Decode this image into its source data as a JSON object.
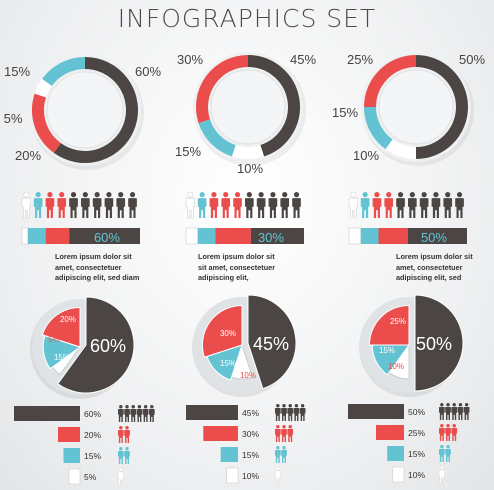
{
  "title": "INFOGRAPHICS SET",
  "colors": {
    "dark": "#4b4643",
    "red": "#ea4d4b",
    "cyan": "#63c3d3",
    "white": "#ffffff"
  },
  "chart_data": [
    {
      "type": "ring",
      "values": [
        60,
        20,
        5,
        15
      ],
      "labels": [
        "60%",
        "20%",
        "5%",
        "15%"
      ],
      "series_colors": [
        "dark",
        "red",
        "white",
        "cyan"
      ]
    },
    {
      "type": "ring",
      "values": [
        45,
        10,
        15,
        30
      ],
      "labels": [
        "45%",
        "10%",
        "15%",
        "30%"
      ],
      "series_colors": [
        "dark",
        "white",
        "cyan",
        "red"
      ]
    },
    {
      "type": "ring",
      "values": [
        50,
        10,
        15,
        25
      ],
      "labels": [
        "50%",
        "10%",
        "15%",
        "25%"
      ],
      "series_colors": [
        "dark",
        "white",
        "cyan",
        "red"
      ]
    },
    {
      "type": "people_bar",
      "value": 60,
      "label": "60%",
      "segments": [
        5,
        15,
        20,
        60
      ],
      "segment_colors": [
        "white",
        "cyan",
        "red",
        "dark"
      ],
      "people_colors": [
        "white",
        "cyan",
        "red",
        "red",
        "dark",
        "dark",
        "dark",
        "dark",
        "dark",
        "dark"
      ],
      "description": [
        "Lorem ipsum dolor sit",
        "amet, consectetuer",
        "adipiscing elit, sed diam"
      ]
    },
    {
      "type": "people_bar",
      "value": 30,
      "label": "30%",
      "segments": [
        10,
        15,
        30,
        45
      ],
      "segment_colors": [
        "white",
        "cyan",
        "red",
        "dark"
      ],
      "people_colors": [
        "white",
        "cyan",
        "red",
        "red",
        "red",
        "dark",
        "dark",
        "dark",
        "dark",
        "dark"
      ],
      "description": [
        "Lorem ipsum dolor sit",
        "sit amet, consectetuer",
        "adipiscing elit,"
      ]
    },
    {
      "type": "people_bar",
      "value": 50,
      "label": "50%",
      "segments": [
        10,
        15,
        25,
        50
      ],
      "segment_colors": [
        "white",
        "cyan",
        "red",
        "dark"
      ],
      "people_colors": [
        "white",
        "cyan",
        "red",
        "red",
        "dark",
        "dark",
        "dark",
        "dark",
        "dark",
        "dark"
      ],
      "description": [
        "Lorem ipsum dolor sit",
        "amet, consectetuer",
        "adipiscing elit, sed"
      ]
    },
    {
      "type": "pie",
      "values": [
        60,
        5,
        15,
        20
      ],
      "labels": [
        "60%",
        "5%",
        "15%",
        "20%"
      ],
      "series_colors": [
        "dark",
        "white",
        "cyan",
        "red"
      ],
      "exploded": 0
    },
    {
      "type": "pie",
      "values": [
        45,
        10,
        15,
        30
      ],
      "labels": [
        "45%",
        "10%",
        "15%",
        "30%"
      ],
      "series_colors": [
        "dark",
        "white",
        "cyan",
        "red"
      ],
      "exploded": 0
    },
    {
      "type": "pie",
      "values": [
        50,
        10,
        15,
        25
      ],
      "labels": [
        "50%",
        "10%",
        "15%",
        "25%"
      ],
      "series_colors": [
        "dark",
        "white",
        "cyan",
        "red"
      ],
      "exploded": 0
    },
    {
      "type": "bar",
      "values": [
        60,
        20,
        15,
        5
      ],
      "labels": [
        "60%",
        "20%",
        "15%",
        "5%"
      ],
      "series_colors": [
        "dark",
        "red",
        "cyan",
        "white"
      ],
      "icon_counts": [
        6,
        2,
        2,
        1
      ]
    },
    {
      "type": "bar",
      "values": [
        45,
        30,
        15,
        10
      ],
      "labels": [
        "45%",
        "30%",
        "15%",
        "10%"
      ],
      "series_colors": [
        "dark",
        "red",
        "cyan",
        "white"
      ],
      "icon_counts": [
        5,
        3,
        2,
        1
      ]
    },
    {
      "type": "bar",
      "values": [
        50,
        25,
        15,
        10
      ],
      "labels": [
        "50%",
        "25%",
        "15%",
        "10%"
      ],
      "series_colors": [
        "dark",
        "red",
        "cyan",
        "white"
      ],
      "icon_counts": [
        5,
        3,
        2,
        1
      ]
    }
  ]
}
